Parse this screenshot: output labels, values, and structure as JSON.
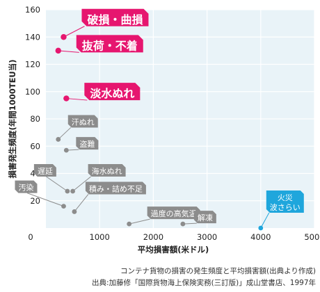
{
  "chart_data": {
    "type": "scatter",
    "xlabel": "平均損害額(米ドル)",
    "ylabel": "損害発生頻度(年間1000TEU当)",
    "xlim": [
      0,
      5000
    ],
    "ylim": [
      0,
      160
    ],
    "xticks": [
      0,
      1000,
      2000,
      3000,
      4000,
      5000
    ],
    "yticks": [
      20,
      40,
      60,
      80,
      100,
      120,
      140,
      160
    ],
    "grid": true,
    "colors": {
      "plot_bg": "#e9f3f8",
      "grid": "#ffffff",
      "highlight": "#e6166f",
      "normal": "#8c8c8c",
      "special": "#1fa6dc",
      "axis_text": "#222222"
    },
    "points": [
      {
        "label": "破損・曲損",
        "x": 330,
        "y": 140,
        "group": "highlight"
      },
      {
        "label": "抜荷・不着",
        "x": 230,
        "y": 130,
        "group": "highlight"
      },
      {
        "label": "淡水ぬれ",
        "x": 380,
        "y": 95,
        "group": "highlight"
      },
      {
        "label": "汗ぬれ",
        "x": 230,
        "y": 65,
        "group": "normal"
      },
      {
        "label": "盗難",
        "x": 380,
        "y": 57,
        "group": "normal"
      },
      {
        "label": "遅延",
        "x": 400,
        "y": 27,
        "group": "normal"
      },
      {
        "label": "海水ぬれ",
        "x": 500,
        "y": 27,
        "group": "normal"
      },
      {
        "label": "汚染",
        "x": 330,
        "y": 16,
        "group": "normal"
      },
      {
        "label": "積み・詰め不足",
        "x": 530,
        "y": 12,
        "group": "normal"
      },
      {
        "label": "過度の高気温",
        "x": 1550,
        "y": 3,
        "group": "normal"
      },
      {
        "label": "解凍",
        "x": 2550,
        "y": 3,
        "group": "normal"
      },
      {
        "label": "火災\n波さらい",
        "x": 4000,
        "y": 0,
        "group": "special"
      }
    ]
  },
  "caption": {
    "line1": "コンテナ貨物の損害の発生頻度と平均損害額(出典より作成)",
    "line2": "出典:加藤修「国際貨物海上保険実務(三訂版)」成山堂書店、1997年"
  }
}
